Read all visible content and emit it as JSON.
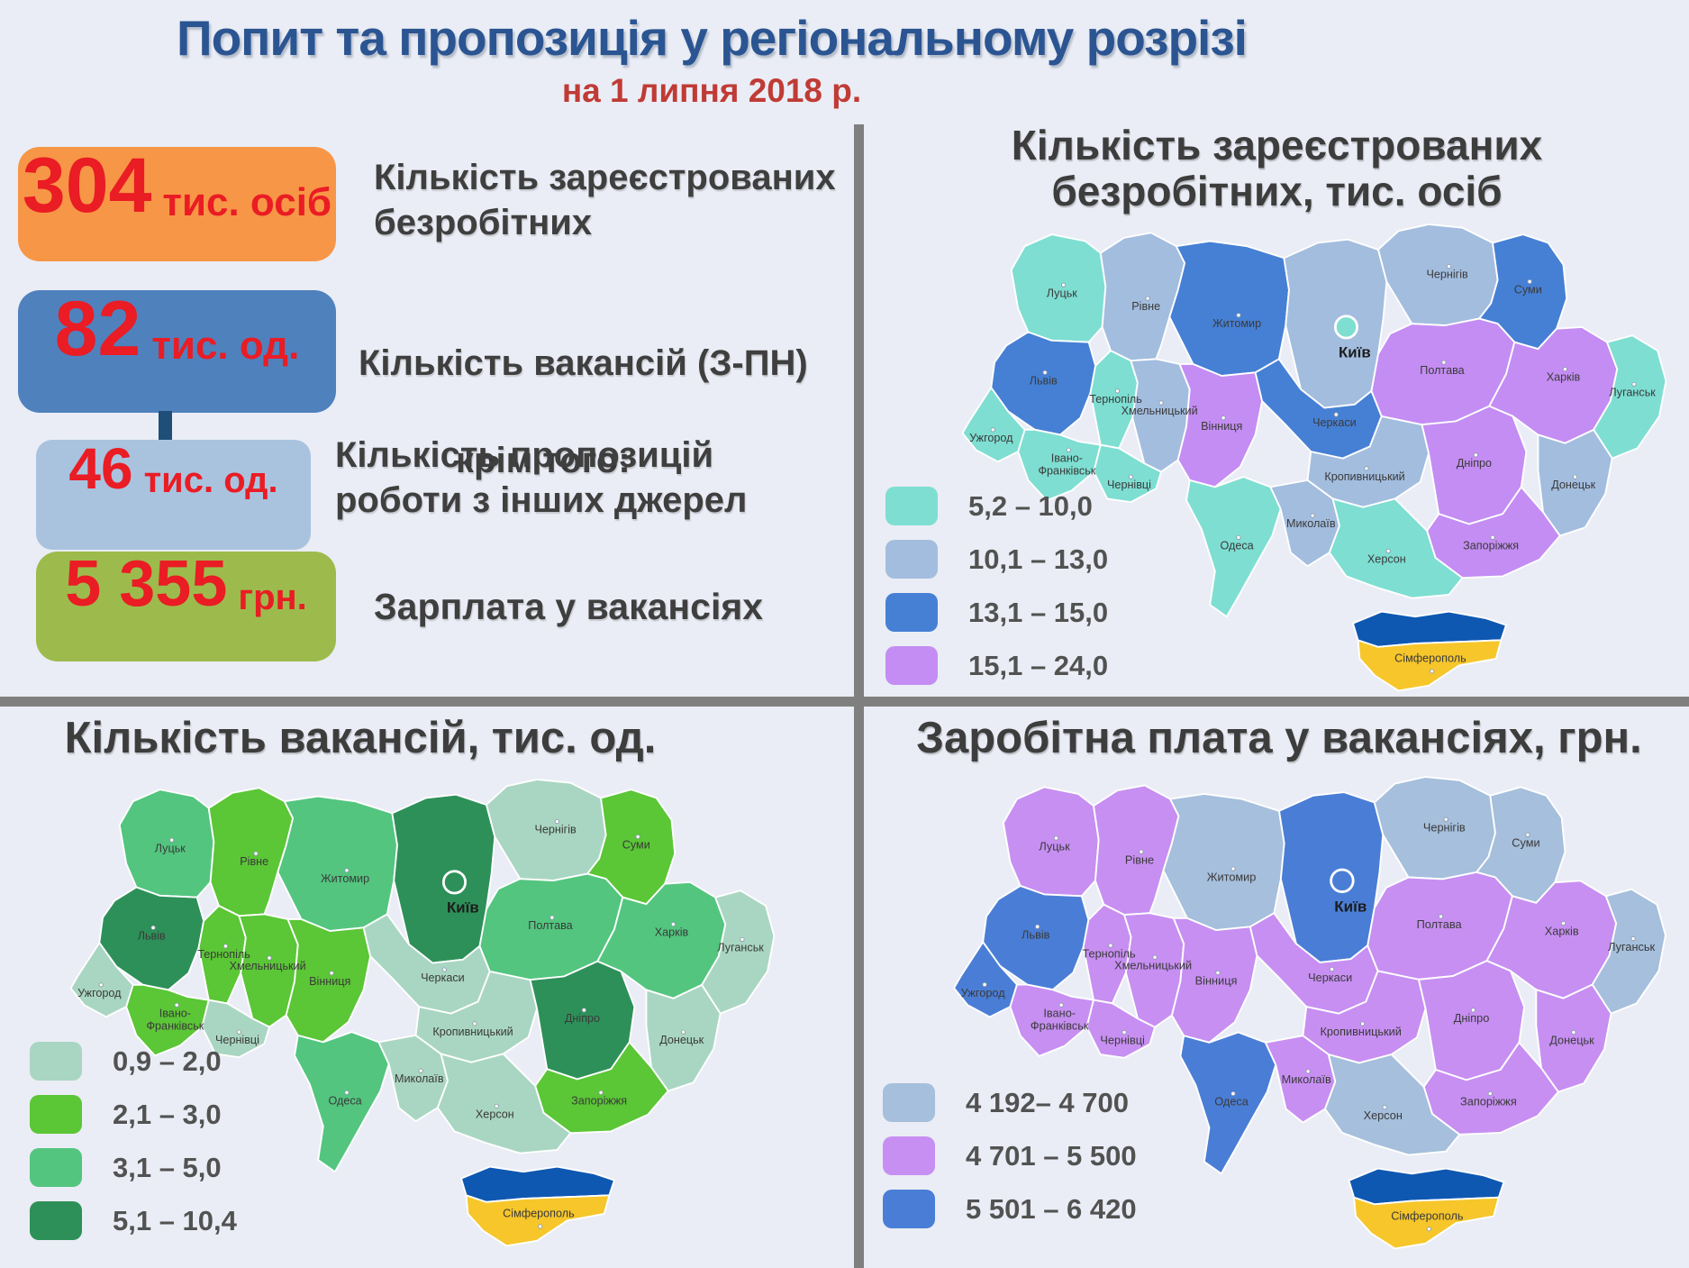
{
  "header": {
    "title": "Попит та пропозиція у регіональному розрізі",
    "subtitle": "на 1 липня 2018 р."
  },
  "stats": [
    {
      "value": "304",
      "unit": "тис. осіб",
      "label": "Кількість зареєстрованих\nбезробітних",
      "color": "#F79646"
    },
    {
      "value": "82",
      "unit": "тис. од.",
      "label": "Кількість вакансій (З-ПН)",
      "note": "крім того:",
      "color": "#4F81BD"
    },
    {
      "value": "46",
      "unit": "тис. од.",
      "label": "Кількість пропозицій\nроботи з інших джерел",
      "color": "#A9C3DF"
    },
    {
      "value": "5 355",
      "unit": "грн.",
      "label": "Зарплата у вакансіях",
      "color": "#9DBB4D"
    }
  ],
  "region_labels": {
    "volyn": "Луцьк",
    "rivne": "Рівне",
    "zhytomyr": "Житомир",
    "kyivobl": "",
    "kyiv_city": "Київ",
    "chernihiv": "Чернігів",
    "sumy": "Суми",
    "lviv": "Львів",
    "ternopil": "Тернопіль",
    "khmelnytskyi": "Хмельницький",
    "vinnytsia": "Вінниця",
    "cherkasy": "Черкаси",
    "poltava": "Полтава",
    "kharkiv": "Харків",
    "zakarpattia": "Ужгород",
    "ivanofrankivsk": "Івано-Франківськ",
    "chernivtsi": "Чернівці",
    "kirovohrad": "Кропивницький",
    "dnipro": "Дніпро",
    "luhansk": "Луганськ",
    "donetsk": "Донецьк",
    "zaporizhzhia": "Запоріжжя",
    "odesa": "Одеса",
    "mykolaiv": "Миколаїв",
    "kherson": "Херсон",
    "crimea": "Сімферополь"
  },
  "crimea_colors": {
    "top": "#0F58B2",
    "bottom": "#F6C62B"
  },
  "maps": {
    "unemployment": {
      "title": "Кількість зареєстрованих\nбезробітних, тис. осіб",
      "legend": [
        {
          "label": "5,2 – 10,0",
          "color": "#7EDED2"
        },
        {
          "label": "10,1 – 13,0",
          "color": "#A3BDDF"
        },
        {
          "label": "13,1 – 15,0",
          "color": "#4680D5"
        },
        {
          "label": "15,1 – 24,0",
          "color": "#C48DF3"
        }
      ],
      "regions": {
        "volyn": 0,
        "rivne": 1,
        "zhytomyr": 2,
        "kyivobl": 1,
        "kyiv_city": 0,
        "chernihiv": 1,
        "sumy": 2,
        "lviv": 2,
        "ternopil": 0,
        "khmelnytskyi": 1,
        "vinnytsia": 3,
        "cherkasy": 2,
        "poltava": 3,
        "kharkiv": 3,
        "zakarpattia": 0,
        "ivanofrankivsk": 0,
        "chernivtsi": 0,
        "kirovohrad": 1,
        "dnipro": 3,
        "luhansk": 0,
        "donetsk": 1,
        "zaporizhzhia": 3,
        "odesa": 0,
        "mykolaiv": 1,
        "kherson": 0
      }
    },
    "vacancies": {
      "title": "Кількість вакансій, тис. од.",
      "legend": [
        {
          "label": "0,9 – 2,0",
          "color": "#A9D6C2"
        },
        {
          "label": "2,1 – 3,0",
          "color": "#5BC636"
        },
        {
          "label": "3,1 – 5,0",
          "color": "#53C57F"
        },
        {
          "label": "5,1 – 10,4",
          "color": "#2E9059"
        }
      ],
      "regions": {
        "volyn": 2,
        "rivne": 1,
        "zhytomyr": 2,
        "kyivobl": 3,
        "kyiv_city": 3,
        "chernihiv": 0,
        "sumy": 1,
        "lviv": 3,
        "ternopil": 1,
        "khmelnytskyi": 1,
        "vinnytsia": 1,
        "cherkasy": 0,
        "poltava": 2,
        "kharkiv": 2,
        "zakarpattia": 0,
        "ivanofrankivsk": 1,
        "chernivtsi": 0,
        "kirovohrad": 0,
        "dnipro": 3,
        "luhansk": 0,
        "donetsk": 0,
        "zaporizhzhia": 1,
        "odesa": 2,
        "mykolaiv": 0,
        "kherson": 0
      }
    },
    "salary": {
      "title": "Заробітна плата у вакансіях, грн.",
      "legend": [
        {
          "label": "4 192– 4 700",
          "color": "#A5BFDC"
        },
        {
          "label": "4 701 – 5 500",
          "color": "#C78FF2"
        },
        {
          "label": "5 501 – 6 420",
          "color": "#4A7ED6"
        }
      ],
      "regions": {
        "volyn": 1,
        "rivne": 1,
        "zhytomyr": 0,
        "kyivobl": 2,
        "kyiv_city": 2,
        "chernihiv": 0,
        "sumy": 0,
        "lviv": 2,
        "ternopil": 1,
        "khmelnytskyi": 1,
        "vinnytsia": 1,
        "cherkasy": 1,
        "poltava": 1,
        "kharkiv": 1,
        "zakarpattia": 2,
        "ivanofrankivsk": 1,
        "chernivtsi": 1,
        "kirovohrad": 1,
        "dnipro": 1,
        "luhansk": 0,
        "donetsk": 1,
        "zaporizhzhia": 1,
        "odesa": 2,
        "mykolaiv": 1,
        "kherson": 0
      }
    }
  }
}
